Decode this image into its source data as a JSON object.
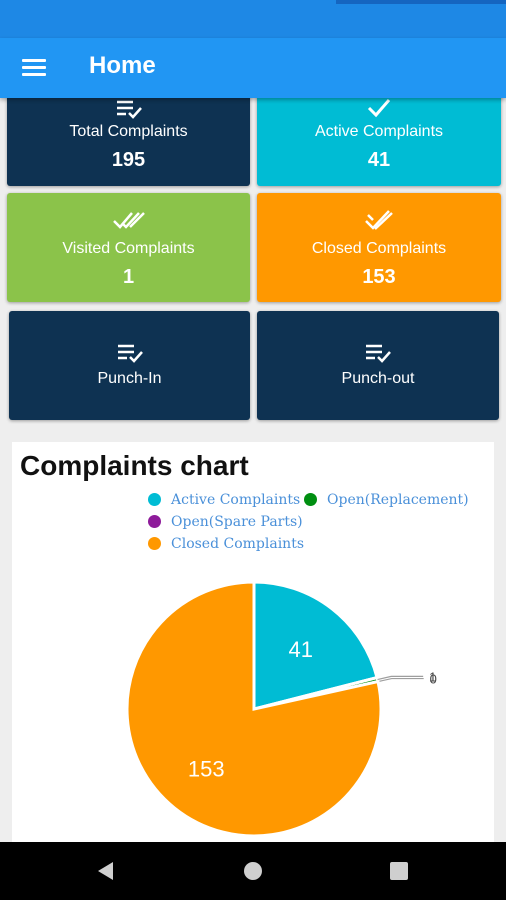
{
  "app_bar": {
    "title": "Home",
    "menu_icon": "menu-icon"
  },
  "cards": {
    "total": {
      "label": "Total Complaints",
      "value": "195",
      "color": "#0e3252"
    },
    "active": {
      "label": "Active Complaints",
      "value": "41",
      "color": "#00bcd4"
    },
    "visited": {
      "label": "Visited Complaints",
      "value": "1",
      "color": "#8bc34a"
    },
    "closed": {
      "label": "Closed Complaints",
      "value": "153",
      "color": "#ff9800"
    },
    "punch_in": {
      "label": "Punch-In",
      "color": "#0e3252"
    },
    "punch_out": {
      "label": "Punch-out",
      "color": "#0e3252"
    }
  },
  "chart_data": {
    "type": "pie",
    "title": "Complaints chart",
    "legend_position": "top",
    "slices": [
      {
        "label": "Active Complaints",
        "value": 41,
        "color": "#00bcd4",
        "value_label": "41"
      },
      {
        "label": "Open(Replacement)",
        "value": 1,
        "color": "#008f11",
        "value_label": "1"
      },
      {
        "label": "Open(Spare Parts)",
        "value": 0,
        "color": "#8e1b9a",
        "value_label": "0"
      },
      {
        "label": "Closed Complaints",
        "value": 153,
        "color": "#ff9800",
        "value_label": "153"
      }
    ]
  },
  "nav": {
    "back_icon": "back-icon",
    "home_icon": "home-icon",
    "recents_icon": "recents-icon"
  }
}
